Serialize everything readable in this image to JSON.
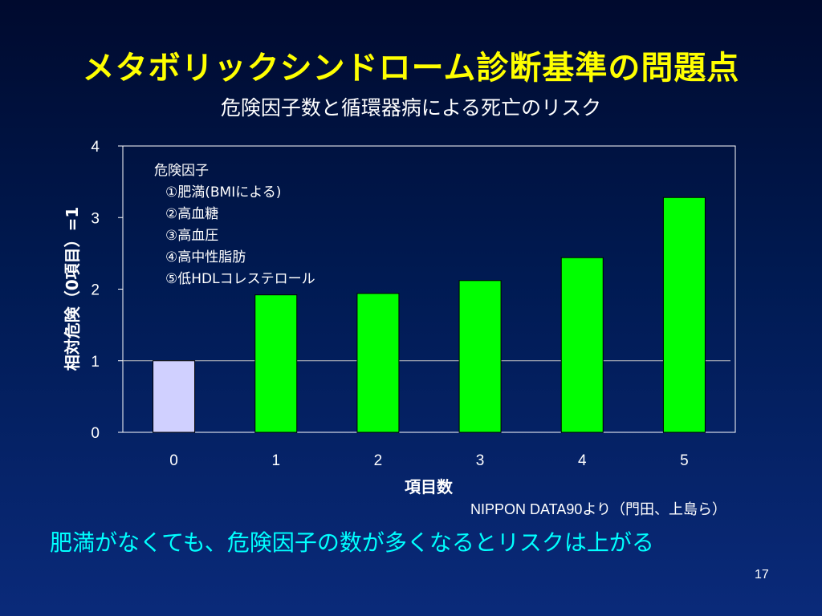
{
  "slide": {
    "title": "メタボリックシンドローム診断基準の問題点",
    "subtitle": "危険因子数と循環器病による死亡のリスク",
    "source": "NIPPON DATA90より（門田、上島ら）",
    "conclusion": "肥満がなくても、危険因子の数が多くなるとリスクは上がる",
    "page_number": "17"
  },
  "colors": {
    "title": "#ffff00",
    "conclusion": "#00ffff",
    "reference_bar": "#d0d0ff",
    "risk_bar": "#00ff00"
  },
  "legend": {
    "heading": "危険因子",
    "items": [
      "①肥満(BMIによる)",
      "②高血糖",
      "③高血圧",
      "④高中性脂肪",
      "⑤低HDLコレステロール"
    ]
  },
  "chart_data": {
    "type": "bar",
    "categories": [
      "0",
      "1",
      "2",
      "3",
      "4",
      "5"
    ],
    "values": [
      1.0,
      1.92,
      1.94,
      2.12,
      2.44,
      3.28
    ],
    "xlabel": "項目数",
    "ylabel": "相対危険（0項目）=1",
    "ylim": [
      0,
      4
    ],
    "yticks": [
      0,
      1,
      2,
      3,
      4
    ],
    "reference_line": 1,
    "grid": false
  }
}
